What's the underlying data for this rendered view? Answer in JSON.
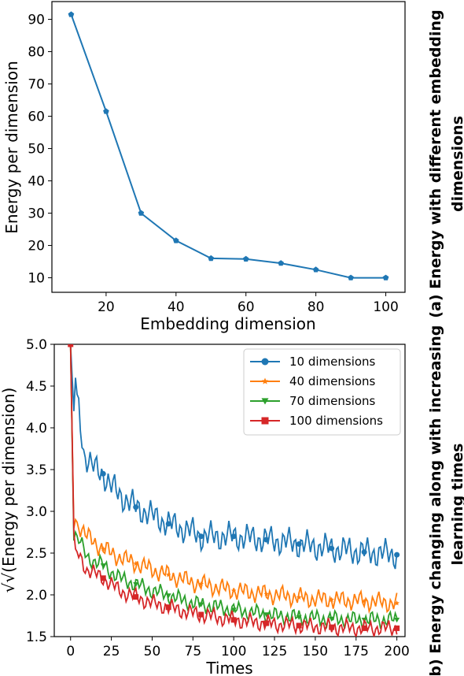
{
  "chart_data": [
    {
      "type": "line",
      "xlabel": "Embedding dimension",
      "ylabel": "Energy per dimension",
      "caption": "(a) Energy with different embedding dimensions",
      "caption_lines": [
        "(a) Energy with different embedding",
        "dimensions"
      ],
      "xlim": [
        4.5,
        105.5
      ],
      "ylim": [
        5.5,
        95.5
      ],
      "xticks": [
        20,
        40,
        60,
        80,
        100
      ],
      "yticks": [
        10,
        20,
        30,
        40,
        50,
        60,
        70,
        80,
        90
      ],
      "grid": false,
      "color": "#1f77b4",
      "x": [
        10,
        20,
        30,
        40,
        50,
        60,
        70,
        80,
        90,
        100
      ],
      "y": [
        91.5,
        61.5,
        30.0,
        21.5,
        16.0,
        15.8,
        14.5,
        12.5,
        10.0,
        10.0
      ]
    },
    {
      "type": "line",
      "xlabel": "Times",
      "ylabel": "√√(Energy per dimension)",
      "caption": "(b) Energy changing along with increasing learning times",
      "caption_lines": [
        "(b) Energy changing along with increasing",
        "learning times"
      ],
      "xlim": [
        -10,
        205
      ],
      "ylim": [
        1.5,
        5.0
      ],
      "xticks": [
        0,
        25,
        50,
        75,
        100,
        125,
        150,
        175,
        200
      ],
      "yticks": [
        1.5,
        2.0,
        2.5,
        3.0,
        3.5,
        4.0,
        4.5,
        5.0
      ],
      "grid": false,
      "legend_position": "top-right",
      "series": [
        {
          "name": "10 dimensions",
          "color": "#1f77b4",
          "marker": "circle",
          "anchors_x": [
            0,
            2,
            3,
            4,
            8,
            15,
            20,
            25,
            30,
            40,
            50,
            60,
            75,
            80,
            100,
            125,
            150,
            175,
            200
          ],
          "anchors_y": [
            5.0,
            4.2,
            4.6,
            4.4,
            3.7,
            3.5,
            3.45,
            3.3,
            3.2,
            3.05,
            2.95,
            2.85,
            2.75,
            2.7,
            2.7,
            2.65,
            2.58,
            2.52,
            2.48
          ]
        },
        {
          "name": "40 dimensions",
          "color": "#ff7f0e",
          "marker": "star",
          "anchors_x": [
            0,
            2,
            3,
            10,
            20,
            30,
            50,
            75,
            100,
            125,
            150,
            175,
            200
          ],
          "anchors_y": [
            5.0,
            2.8,
            2.9,
            2.7,
            2.55,
            2.45,
            2.3,
            2.15,
            2.05,
            2.0,
            1.95,
            1.93,
            1.9
          ]
        },
        {
          "name": "70 dimensions",
          "color": "#2ca02c",
          "marker": "triangle",
          "anchors_x": [
            0,
            2,
            3,
            10,
            20,
            30,
            50,
            75,
            100,
            125,
            150,
            175,
            200
          ],
          "anchors_y": [
            5.0,
            2.65,
            2.75,
            2.45,
            2.35,
            2.2,
            2.05,
            1.9,
            1.82,
            1.75,
            1.72,
            1.7,
            1.7
          ]
        },
        {
          "name": "100 dimensions",
          "color": "#d62728",
          "marker": "square",
          "anchors_x": [
            0,
            2,
            3,
            10,
            20,
            30,
            50,
            75,
            100,
            125,
            150,
            175,
            200
          ],
          "anchors_y": [
            5.0,
            2.75,
            2.55,
            2.3,
            2.2,
            2.05,
            1.9,
            1.78,
            1.7,
            1.65,
            1.62,
            1.6,
            1.6
          ]
        }
      ]
    }
  ]
}
